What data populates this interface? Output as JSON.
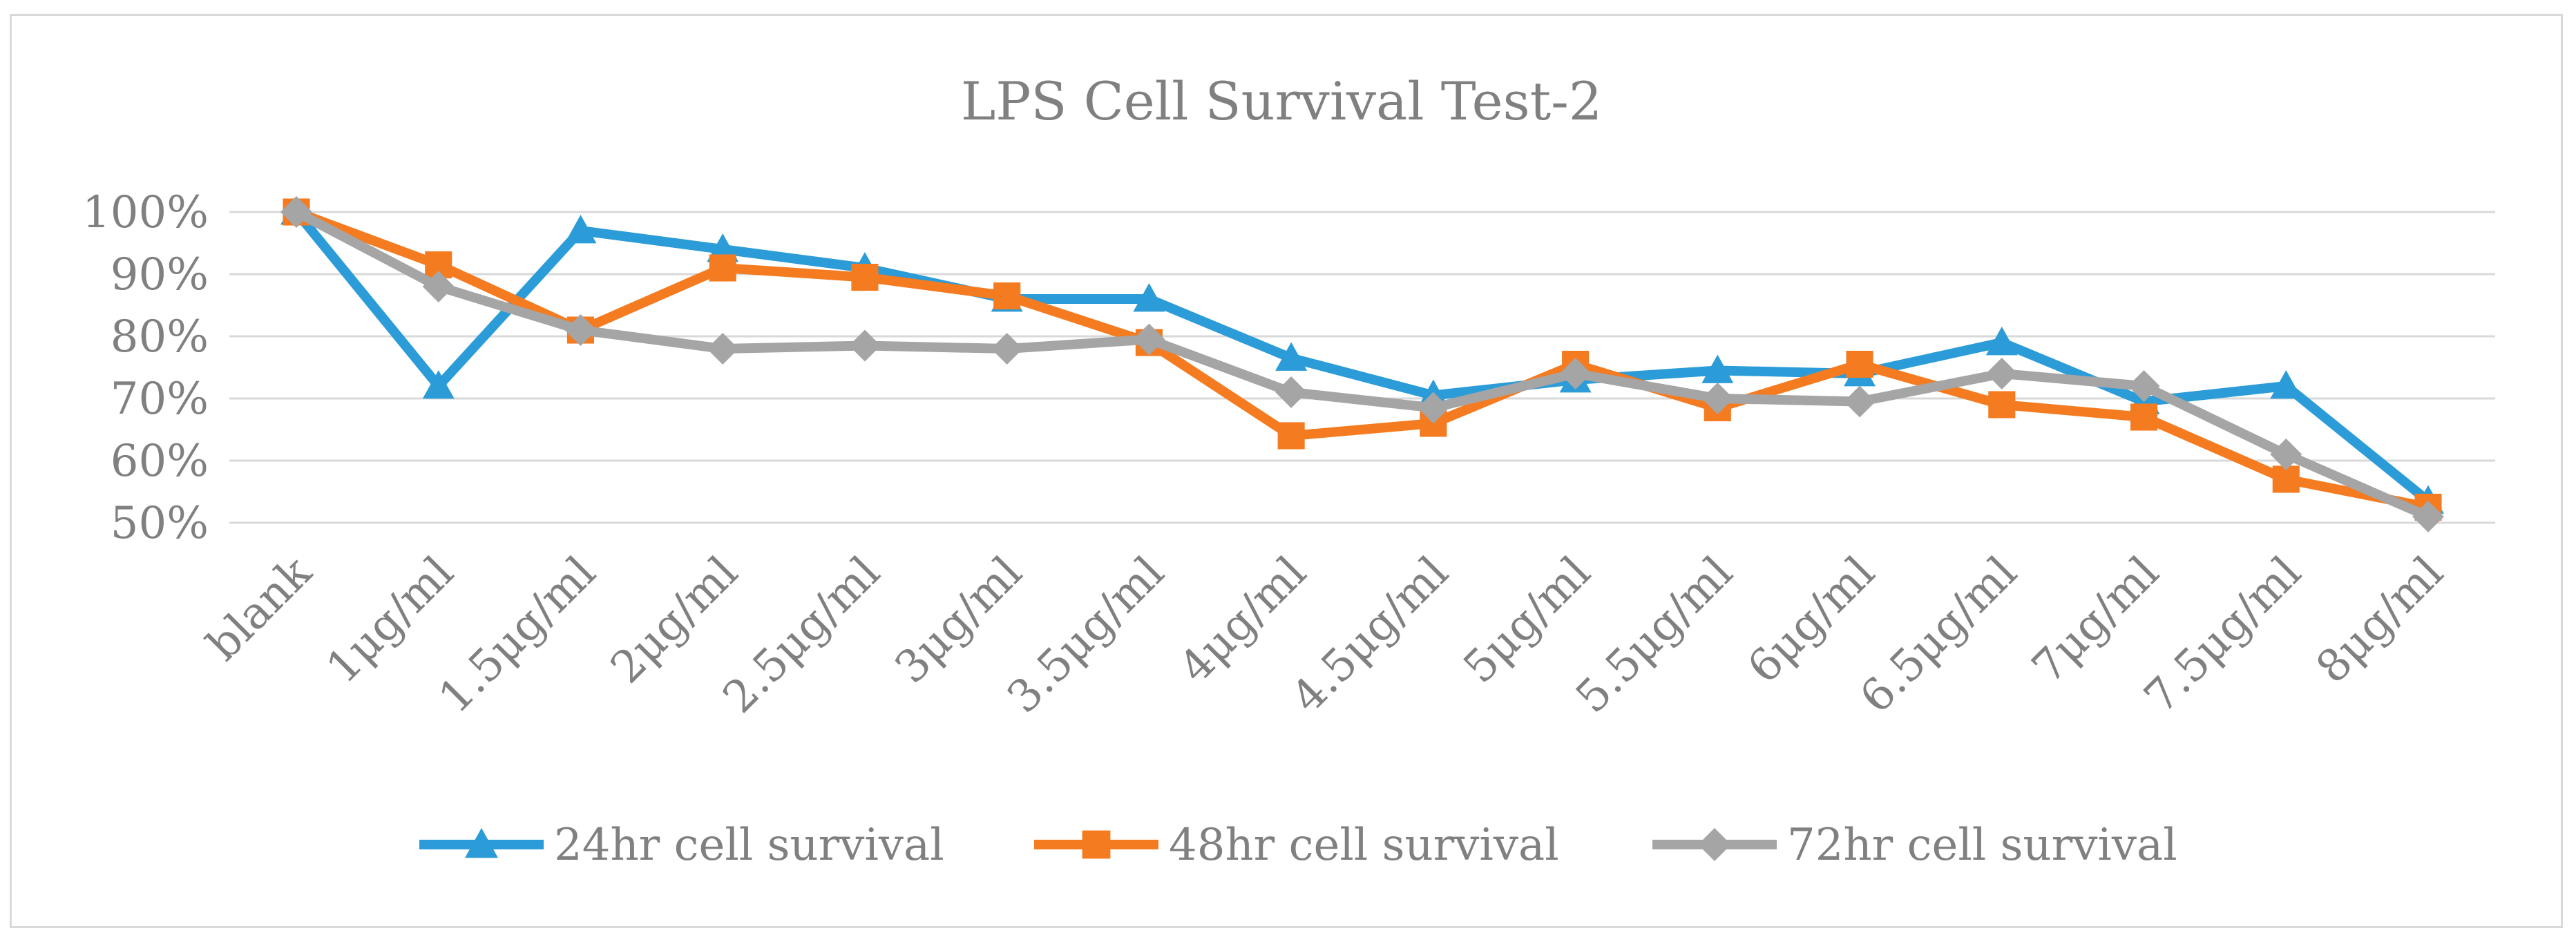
{
  "chart_data": {
    "type": "line",
    "title": "LPS Cell Survival Test-2",
    "xlabel": "",
    "ylabel": "",
    "ylim": [
      50,
      100
    ],
    "yticks": [
      "100%",
      "90%",
      "80%",
      "70%",
      "60%",
      "50%"
    ],
    "ytick_values": [
      100,
      90,
      80,
      70,
      60,
      50
    ],
    "categories": [
      "blank",
      "1μg/ml",
      "1.5μg/ml",
      "2μg/ml",
      "2.5μg/ml",
      "3μg/ml",
      "3.5μg/ml",
      "4μg/ml",
      "4.5μg/ml",
      "5μg/ml",
      "5.5μg/ml",
      "6μg/ml",
      "6.5μg/ml",
      "7μg/ml",
      "7.5μg/ml",
      "8μg/ml"
    ],
    "grid": true,
    "legend_position": "bottom",
    "series": [
      {
        "name": "24hr cell survival",
        "color": "#2b9cd8",
        "marker": "triangle",
        "values": [
          100,
          72,
          97,
          94,
          91,
          86,
          86,
          76.5,
          70.5,
          73,
          74.5,
          74,
          79,
          69.5,
          72,
          53.5
        ]
      },
      {
        "name": "48hr cell survival",
        "color": "#f47b20",
        "marker": "square",
        "values": [
          100,
          91.5,
          81,
          91,
          89.5,
          86.5,
          79,
          64,
          66,
          75.5,
          68.5,
          75.5,
          69,
          67,
          57,
          52.5
        ]
      },
      {
        "name": "72hr cell survival",
        "color": "#a5a5a5",
        "marker": "diamond",
        "values": [
          100,
          88,
          81,
          78,
          78.5,
          78,
          79.5,
          71,
          68.5,
          74,
          70,
          69.5,
          74,
          72,
          61,
          51
        ]
      }
    ]
  }
}
